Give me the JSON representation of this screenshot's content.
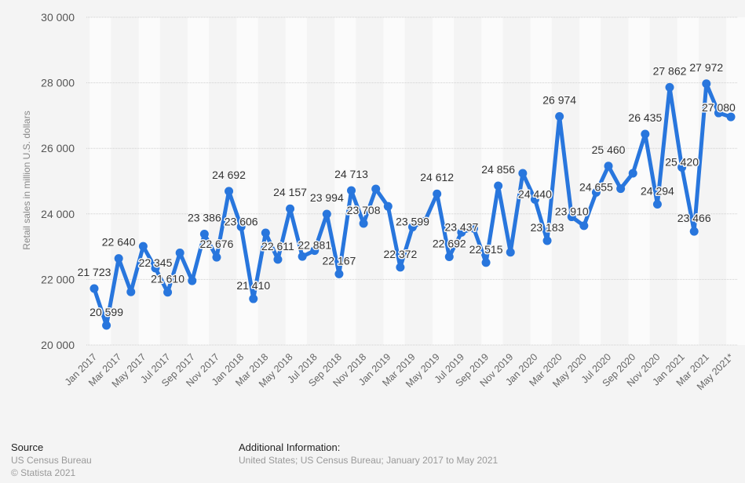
{
  "chart_data": {
    "type": "line",
    "title": "",
    "xlabel": "",
    "ylabel": "Retail sales in million U.S. dollars",
    "ylim": [
      20000,
      30000
    ],
    "yticks": [
      20000,
      22000,
      24000,
      26000,
      28000,
      30000
    ],
    "ytick_labels": [
      "20 000",
      "22 000",
      "24 000",
      "26 000",
      "28 000",
      "30 000"
    ],
    "grid": true,
    "line_color": "#2876dd",
    "x": [
      "Jan 2017",
      "Feb 2017",
      "Mar 2017",
      "Apr 2017",
      "May 2017",
      "Jun 2017",
      "Jul 2017",
      "Aug 2017",
      "Sep 2017",
      "Oct 2017",
      "Nov 2017",
      "Dec 2017",
      "Jan 2018",
      "Feb 2018",
      "Mar 2018",
      "Apr 2018",
      "May 2018",
      "Jun 2018",
      "Jul 2018",
      "Aug 2018",
      "Sep 2018",
      "Oct 2018",
      "Nov 2018",
      "Dec 2018",
      "Jan 2019",
      "Feb 2019",
      "Mar 2019",
      "Apr 2019",
      "May 2019",
      "Jun 2019",
      "Jul 2019",
      "Aug 2019",
      "Sep 2019",
      "Oct 2019",
      "Nov 2019",
      "Dec 2019",
      "Jan 2020",
      "Feb 2020",
      "Mar 2020",
      "Apr 2020",
      "May 2020",
      "Jun 2020",
      "Jul 2020",
      "Aug 2020",
      "Sep 2020",
      "Oct 2020",
      "Nov 2020",
      "Dec 2020",
      "Jan 2021",
      "Feb 2021",
      "Mar 2021",
      "Apr 2021",
      "May 2021*"
    ],
    "xtick_labels": [
      "Jan 2017",
      "Mar 2017",
      "May 2017",
      "Jul 2017",
      "Sep 2017",
      "Nov 2017",
      "Jan 2018",
      "Mar 2018",
      "May 2018",
      "Jul 2018",
      "Sep 2018",
      "Nov 2018",
      "Jan 2019",
      "Mar 2019",
      "May 2019",
      "Jul 2019",
      "Sep 2019",
      "Nov 2019",
      "Jan 2020",
      "Mar 2020",
      "May 2020",
      "Jul 2020",
      "Sep 2020",
      "Nov 2020",
      "Jan 2021",
      "Mar 2021",
      "May 2021*"
    ],
    "series": [
      {
        "name": "Retail sales",
        "values": [
          21723,
          20599,
          22640,
          21620,
          23010,
          22345,
          21610,
          22810,
          21960,
          23386,
          22676,
          24692,
          23606,
          21410,
          23420,
          22611,
          24157,
          22700,
          22881,
          23994,
          22167,
          24713,
          23708,
          24760,
          24230,
          22372,
          23599,
          23770,
          24612,
          22692,
          23437,
          23560,
          22515,
          24856,
          22830,
          25240,
          24440,
          23183,
          26974,
          23910,
          23640,
          24655,
          25460,
          24770,
          25240,
          26435,
          24294,
          27862,
          25420,
          23466,
          27972,
          27080,
          26960
        ],
        "labeled": [
          1,
          1,
          1,
          0,
          0,
          1,
          1,
          0,
          0,
          1,
          1,
          1,
          1,
          1,
          0,
          1,
          1,
          0,
          1,
          1,
          1,
          1,
          1,
          0,
          0,
          1,
          1,
          0,
          1,
          1,
          1,
          0,
          1,
          1,
          0,
          0,
          1,
          1,
          1,
          1,
          0,
          1,
          1,
          0,
          0,
          1,
          1,
          1,
          1,
          1,
          1,
          1,
          0
        ],
        "data_labels": [
          "21 723",
          "20 599",
          "22 640",
          "",
          "",
          "22 345",
          "21 610",
          "",
          "",
          "23 386",
          "22 676",
          "24 692",
          "23 606",
          "21 410",
          "",
          "22 611",
          "24 157",
          "",
          "22 881",
          "23 994",
          "22 167",
          "24 713",
          "23 708",
          "",
          "",
          "22 372",
          "23 599",
          "",
          "24 612",
          "22 692",
          "23 437",
          "",
          "22 515",
          "24 856",
          "",
          "",
          "24 440",
          "23 183",
          "26 974",
          "23 910",
          "",
          "24 655",
          "25 460",
          "",
          "",
          "26 435",
          "24 294",
          "27 862",
          "25 420",
          "23 466",
          "27 972",
          "27 080",
          ""
        ]
      }
    ]
  },
  "footer": {
    "source_heading": "Source",
    "source_name": "US Census Bureau",
    "copyright": "© Statista 2021",
    "additional_heading": "Additional Information:",
    "additional_text": "United States; US Census Bureau; January 2017 to May 2021"
  }
}
